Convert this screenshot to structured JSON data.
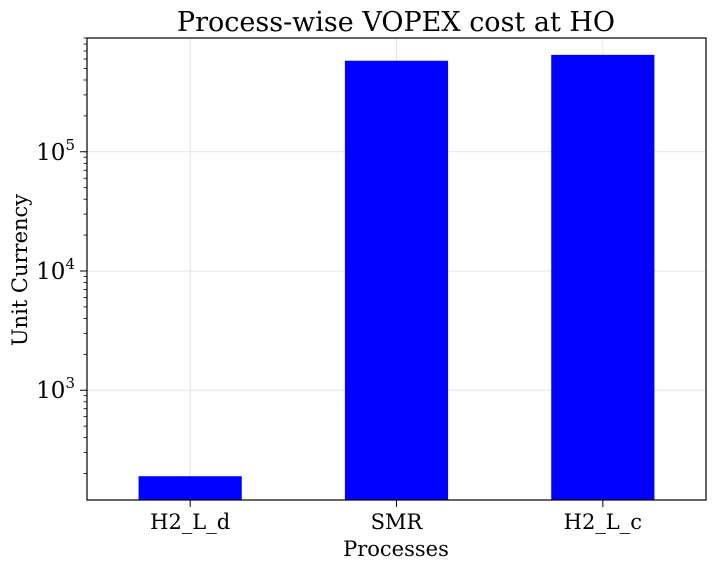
{
  "chart_data": {
    "type": "bar",
    "title": "Process-wise VOPEX cost at HO",
    "xlabel": "Processes",
    "ylabel": "Unit Currency",
    "yscale": "log",
    "ylim": [
      120,
      900000
    ],
    "grid": true,
    "categories": [
      "H2_L_d",
      "SMR",
      "H2_L_c"
    ],
    "values": [
      190,
      580000,
      650000
    ],
    "bar_color": "#0000ff",
    "yticks": [
      {
        "value": 1000,
        "base": "10",
        "exp": "3"
      },
      {
        "value": 10000,
        "base": "10",
        "exp": "4"
      },
      {
        "value": 100000,
        "base": "10",
        "exp": "5"
      }
    ]
  }
}
